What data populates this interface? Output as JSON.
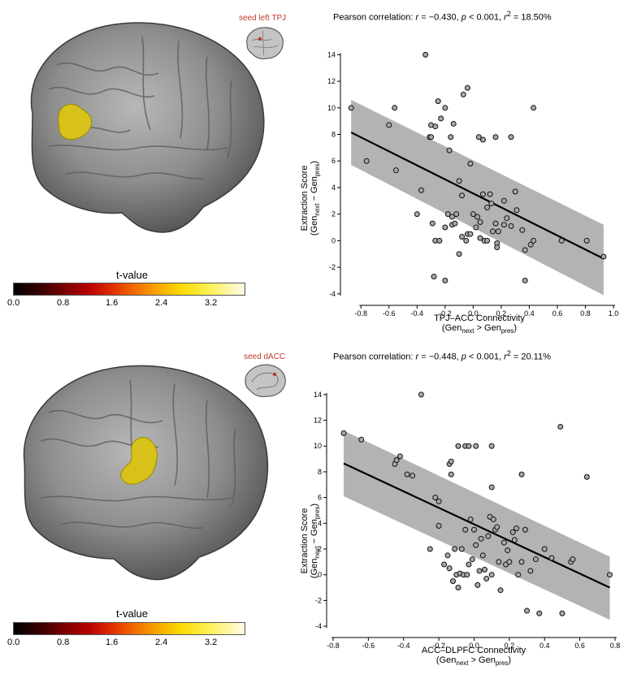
{
  "panels": [
    {
      "seed_label": "seed left TPJ",
      "colorbar": {
        "title": "t-value",
        "ticks": [
          "0.0",
          "0.8",
          "1.6",
          "2.4",
          "3.2"
        ]
      },
      "stat": {
        "prefix": "Pearson correlation: ",
        "r_label": "r",
        "r_value": " = −0.430, ",
        "p_label": "p",
        "p_value": " < 0.001, ",
        "r2_label": "r",
        "r2_sup": "2",
        "r2_value": " = 18.50%"
      },
      "xlabel_main": "TPJ–ACC Connectivity",
      "xlabel_sub": {
        "open": "(Gen",
        "sub1": "next",
        "mid": " > Gen",
        "sub2": "pres",
        "close": ")"
      },
      "ylabel_main": "Extraction Score",
      "ylabel_sub": {
        "open": "(Gen",
        "sub1": "next",
        "mid": " − Gen",
        "sub2": "pres",
        "close": ")"
      }
    },
    {
      "seed_label": "seed dACC",
      "colorbar": {
        "title": "t-value",
        "ticks": [
          "0.0",
          "0.8",
          "1.6",
          "2.4",
          "3.2"
        ]
      },
      "stat": {
        "prefix": "Pearson correlation: ",
        "r_label": "r",
        "r_value": " = −0.448, ",
        "p_label": "p",
        "p_value": " < 0.001, ",
        "r2_label": "r",
        "r2_sup": "2",
        "r2_value": " = 20.11%"
      },
      "xlabel_main": "ACC–DLPFC Connectivity",
      "xlabel_sub": {
        "open": "(Gen",
        "sub1": "next",
        "mid": " > Gen",
        "sub2": "pres",
        "close": ")"
      },
      "ylabel_main": "Extraction Score",
      "ylabel_sub": {
        "open": "(Gen",
        "sub1": "next",
        "mid": " − Gen",
        "sub2": "pres",
        "close": ")"
      }
    }
  ],
  "chart_data": [
    {
      "type": "scatter",
      "title": "Pearson correlation: r = −0.430, p < 0.001, r² = 18.50%",
      "xlabel": "TPJ–ACC Connectivity (Gen next > Gen pres)",
      "ylabel": "Extraction Score (Gen next − Gen pres)",
      "xlim": [
        -0.9,
        1.0
      ],
      "ylim": [
        -4.5,
        15
      ],
      "xticks": [
        "-0.8",
        "-0.6",
        "-0.4",
        "-0.2",
        "0.0",
        "0.2",
        "0.4",
        "0.6",
        "0.8",
        "1.0"
      ],
      "yticks": [
        "-4",
        "-2",
        "0",
        "2",
        "4",
        "6",
        "8",
        "10",
        "12",
        "14"
      ],
      "grid": false,
      "fit_line": {
        "x": [
          -0.87,
          0.93
        ],
        "y": [
          8.15,
          -1.35
        ]
      },
      "ci_band": {
        "x": [
          -0.87,
          0.93
        ],
        "upper": [
          10.6,
          1.2
        ],
        "lower": [
          5.7,
          -4.1
        ]
      },
      "colors": {
        "point_fill": "#a8a8a8",
        "point_stroke": "#111111",
        "band": "#b3b3b3",
        "line": "#000000"
      },
      "points": [
        [
          -0.87,
          10
        ],
        [
          -0.76,
          6
        ],
        [
          -0.6,
          8.7
        ],
        [
          -0.56,
          10
        ],
        [
          -0.55,
          5.3
        ],
        [
          -0.34,
          14
        ],
        [
          -0.31,
          7.8
        ],
        [
          -0.3,
          7.8
        ],
        [
          -0.3,
          8.7
        ],
        [
          -0.27,
          8.6
        ],
        [
          -0.25,
          10.5
        ],
        [
          -0.23,
          9.2
        ],
        [
          -0.2,
          10
        ],
        [
          -0.17,
          6.8
        ],
        [
          -0.16,
          7.8
        ],
        [
          -0.14,
          8.8
        ],
        [
          -0.1,
          4.5
        ],
        [
          -0.07,
          11
        ],
        [
          -0.04,
          11.5
        ],
        [
          -0.02,
          5.8
        ],
        [
          0.04,
          7.8
        ],
        [
          0.07,
          7.6
        ],
        [
          0.16,
          7.8
        ],
        [
          0.27,
          7.8
        ],
        [
          0.43,
          10
        ],
        [
          -0.37,
          3.8
        ],
        [
          -0.4,
          2
        ],
        [
          -0.29,
          1.3
        ],
        [
          -0.27,
          0
        ],
        [
          -0.28,
          -2.7
        ],
        [
          -0.24,
          0
        ],
        [
          -0.2,
          -3
        ],
        [
          -0.2,
          1
        ],
        [
          -0.18,
          2
        ],
        [
          -0.15,
          1.2
        ],
        [
          -0.13,
          1.3
        ],
        [
          -0.12,
          2
        ],
        [
          -0.1,
          -1
        ],
        [
          -0.08,
          0.3
        ],
        [
          -0.05,
          0
        ],
        [
          -0.04,
          0.5
        ],
        [
          -0.02,
          0.5
        ],
        [
          0.0,
          2
        ],
        [
          0.02,
          1
        ],
        [
          0.03,
          1.8
        ],
        [
          0.05,
          0.2
        ],
        [
          0.07,
          3.5
        ],
        [
          0.08,
          0
        ],
        [
          0.1,
          0
        ],
        [
          0.1,
          2.5
        ],
        [
          0.12,
          3.5
        ],
        [
          0.13,
          2.8
        ],
        [
          0.14,
          0.7
        ],
        [
          0.16,
          1.3
        ],
        [
          0.17,
          -0.2
        ],
        [
          0.17,
          -0.5
        ],
        [
          0.18,
          0.7
        ],
        [
          0.22,
          3
        ],
        [
          0.24,
          1.7
        ],
        [
          0.27,
          1.1
        ],
        [
          0.3,
          3.7
        ],
        [
          0.31,
          2.3
        ],
        [
          0.35,
          0.8
        ],
        [
          0.37,
          -0.7
        ],
        [
          0.37,
          -3
        ],
        [
          0.41,
          -0.3
        ],
        [
          0.43,
          0
        ],
        [
          0.63,
          0
        ],
        [
          0.81,
          0
        ],
        [
          0.93,
          -1.2
        ],
        [
          -0.08,
          3.4
        ],
        [
          0.05,
          1.4
        ],
        [
          -0.15,
          1.8
        ],
        [
          0.22,
          1.2
        ]
      ]
    },
    {
      "type": "scatter",
      "title": "Pearson correlation: r = −0.448, p < 0.001, r² = 20.11%",
      "xlabel": "ACC–DLPFC Connectivity (Gen next > Gen pres)",
      "ylabel": "Extraction Score (Gen next − Gen pres)",
      "xlim": [
        -0.8,
        0.8
      ],
      "ylim": [
        -4.5,
        15
      ],
      "xticks": [
        "-0.8",
        "-0.6",
        "-0.4",
        "-0.2",
        "0.0",
        "0.2",
        "0.4",
        "0.6",
        "0.8"
      ],
      "yticks": [
        "-4",
        "-2",
        "0",
        "2",
        "4",
        "6",
        "8",
        "10",
        "12",
        "14"
      ],
      "grid": false,
      "fit_line": {
        "x": [
          -0.74,
          0.77
        ],
        "y": [
          8.65,
          -1.0
        ]
      },
      "ci_band": {
        "x": [
          -0.74,
          0.77
        ],
        "upper": [
          11.2,
          1.4
        ],
        "lower": [
          6.1,
          -3.5
        ]
      },
      "colors": {
        "point_fill": "#a8a8a8",
        "point_stroke": "#111111",
        "band": "#b3b3b3",
        "line": "#000000"
      },
      "points": [
        [
          -0.74,
          11
        ],
        [
          -0.64,
          10.5
        ],
        [
          -0.45,
          8.6
        ],
        [
          -0.44,
          8.9
        ],
        [
          -0.42,
          9.2
        ],
        [
          -0.38,
          7.8
        ],
        [
          -0.35,
          7.7
        ],
        [
          -0.3,
          14
        ],
        [
          -0.22,
          6
        ],
        [
          -0.2,
          5.7
        ],
        [
          -0.14,
          8.6
        ],
        [
          -0.13,
          8.8
        ],
        [
          -0.13,
          7.8
        ],
        [
          -0.09,
          10
        ],
        [
          -0.05,
          10
        ],
        [
          -0.03,
          10
        ],
        [
          0.01,
          10
        ],
        [
          0.1,
          10
        ],
        [
          0.1,
          6.8
        ],
        [
          0.27,
          7.8
        ],
        [
          0.49,
          11.5
        ],
        [
          0.64,
          7.6
        ],
        [
          -0.2,
          3.8
        ],
        [
          -0.25,
          2
        ],
        [
          -0.17,
          0.8
        ],
        [
          -0.14,
          0.5
        ],
        [
          -0.12,
          -0.5
        ],
        [
          -0.11,
          2
        ],
        [
          -0.1,
          0
        ],
        [
          -0.09,
          -1
        ],
        [
          -0.08,
          0.1
        ],
        [
          -0.07,
          2
        ],
        [
          -0.06,
          0
        ],
        [
          -0.05,
          3.5
        ],
        [
          -0.04,
          0
        ],
        [
          -0.03,
          0.8
        ],
        [
          -0.02,
          4.3
        ],
        [
          -0.01,
          1.2
        ],
        [
          0.0,
          3.5
        ],
        [
          0.01,
          2.3
        ],
        [
          0.02,
          -0.8
        ],
        [
          0.03,
          0.3
        ],
        [
          0.04,
          2.8
        ],
        [
          0.05,
          1.5
        ],
        [
          0.06,
          0.4
        ],
        [
          0.07,
          -0.3
        ],
        [
          0.08,
          3
        ],
        [
          0.09,
          4.5
        ],
        [
          0.1,
          0
        ],
        [
          0.12,
          3.5
        ],
        [
          0.13,
          3.7
        ],
        [
          0.14,
          1
        ],
        [
          0.15,
          -1.2
        ],
        [
          0.17,
          2.5
        ],
        [
          0.18,
          0.8
        ],
        [
          0.2,
          1
        ],
        [
          0.22,
          3.3
        ],
        [
          0.23,
          2.7
        ],
        [
          0.24,
          3.6
        ],
        [
          0.25,
          0
        ],
        [
          0.27,
          1
        ],
        [
          0.29,
          3.5
        ],
        [
          0.3,
          -2.8
        ],
        [
          0.32,
          0.3
        ],
        [
          0.35,
          1.2
        ],
        [
          0.37,
          -3
        ],
        [
          0.4,
          2
        ],
        [
          0.44,
          1.3
        ],
        [
          0.5,
          -3
        ],
        [
          0.55,
          1
        ],
        [
          0.56,
          1.2
        ],
        [
          0.77,
          0
        ],
        [
          -0.15,
          1.5
        ],
        [
          0.11,
          4.3
        ],
        [
          0.19,
          1.9
        ]
      ]
    }
  ]
}
